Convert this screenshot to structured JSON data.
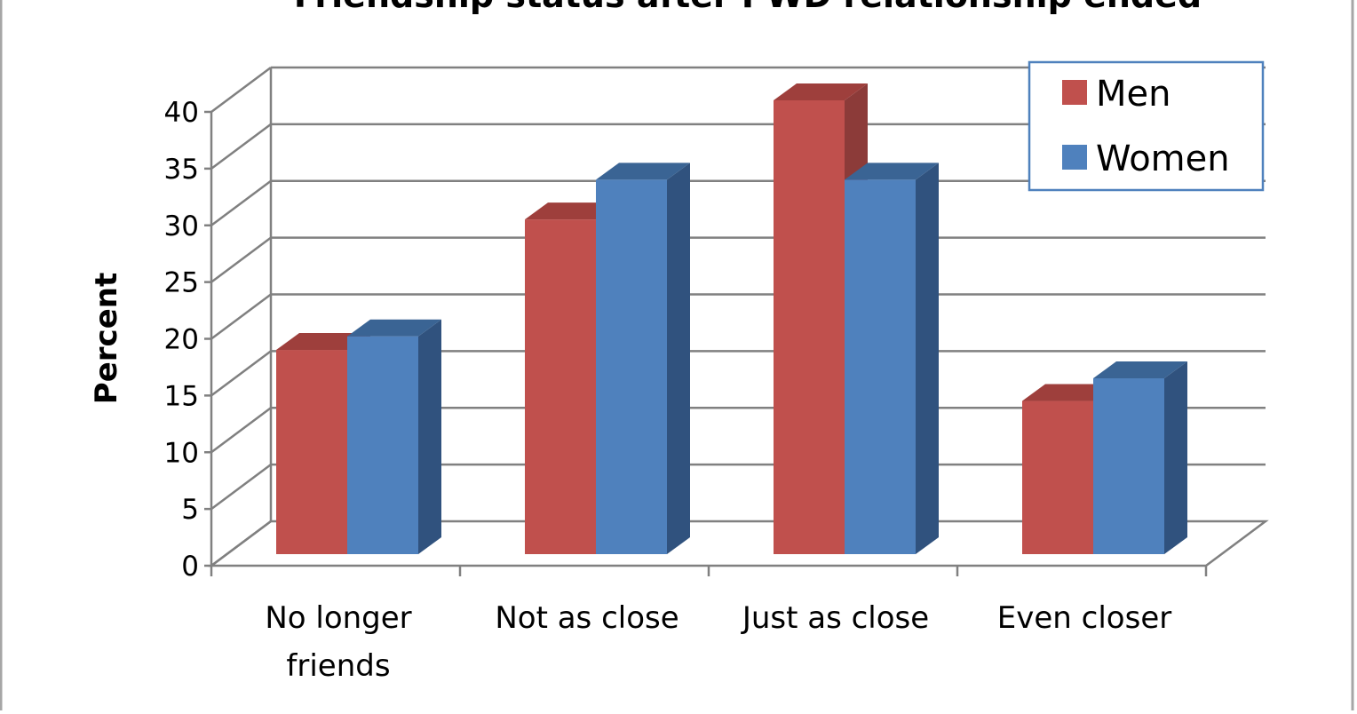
{
  "chart_data": {
    "type": "bar",
    "style": "3d-clustered-column",
    "title": "Friendship status after PWD relationship ended",
    "xlabel": "",
    "ylabel": "Percent",
    "categories": [
      [
        "No longer",
        "friends"
      ],
      [
        "Not as close"
      ],
      [
        "Just as close"
      ],
      [
        "Even closer"
      ]
    ],
    "series": [
      {
        "name": "Men",
        "values": [
          18,
          29.5,
          40,
          13.5
        ],
        "color": "#C0504D",
        "side_color": "#8C3B39",
        "top_color": "#9E3F3C"
      },
      {
        "name": "Women",
        "values": [
          19.2,
          33,
          33,
          15.5
        ],
        "color": "#4F81BD",
        "side_color": "#30527E",
        "top_color": "#3A6494"
      }
    ],
    "ylim": [
      0,
      40
    ],
    "yticks": [
      0,
      5,
      10,
      15,
      20,
      25,
      30,
      35,
      40
    ],
    "grid": true,
    "grid_color": "#808080",
    "legend_position": "top-right",
    "legend_border_color": "#4F81BD",
    "frame_color": "#A6A6A6"
  }
}
